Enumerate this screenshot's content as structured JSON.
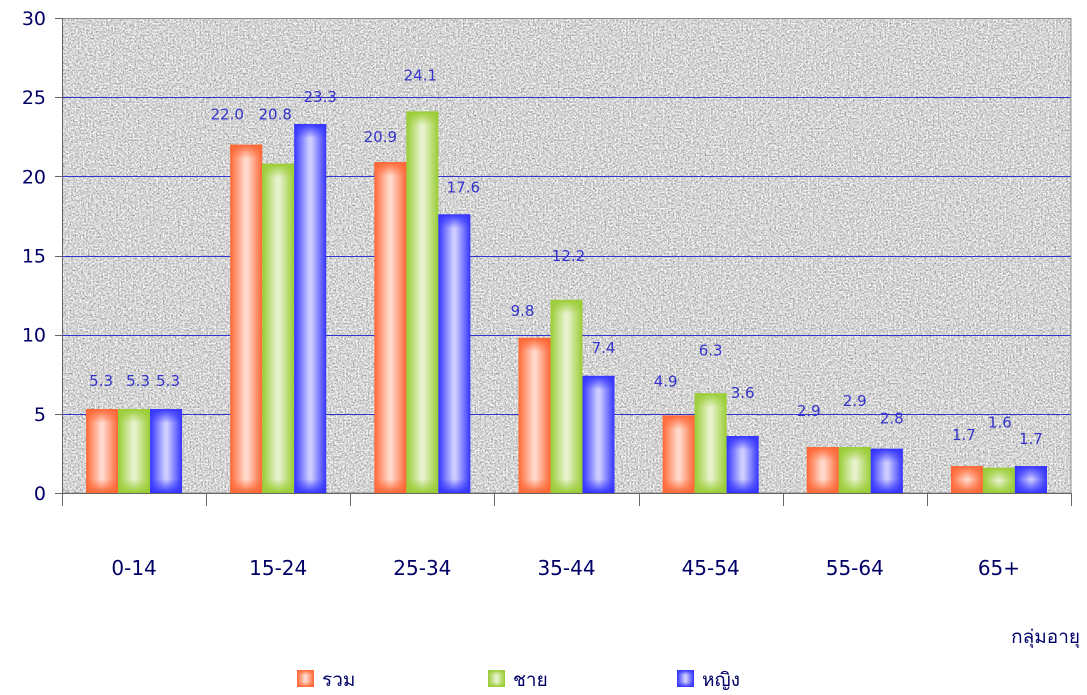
{
  "chart_data": {
    "type": "bar",
    "xlabel": "กลุ่มอายุ",
    "categories": [
      "0-14",
      "15-24",
      "25-34",
      "35-44",
      "45-54",
      "55-64",
      "65+"
    ],
    "series": [
      {
        "name": "รวม",
        "color": "#ff6633",
        "values": [
          5.3,
          22.0,
          20.9,
          9.8,
          4.9,
          2.9,
          1.7
        ]
      },
      {
        "name": "ชาย",
        "color": "#99cc33",
        "values": [
          5.3,
          20.8,
          24.1,
          12.2,
          6.3,
          2.9,
          1.6
        ]
      },
      {
        "name": "หญิง",
        "color": "#3333ff",
        "values": [
          5.3,
          23.3,
          17.6,
          7.4,
          3.6,
          2.8,
          1.7
        ]
      }
    ],
    "ylim": [
      0,
      30
    ],
    "yticks": [
      0,
      5,
      10,
      15,
      20,
      25,
      30
    ],
    "grid": true,
    "gridline_color": "#3333cc",
    "legend": "bottom",
    "data_labels": true
  }
}
